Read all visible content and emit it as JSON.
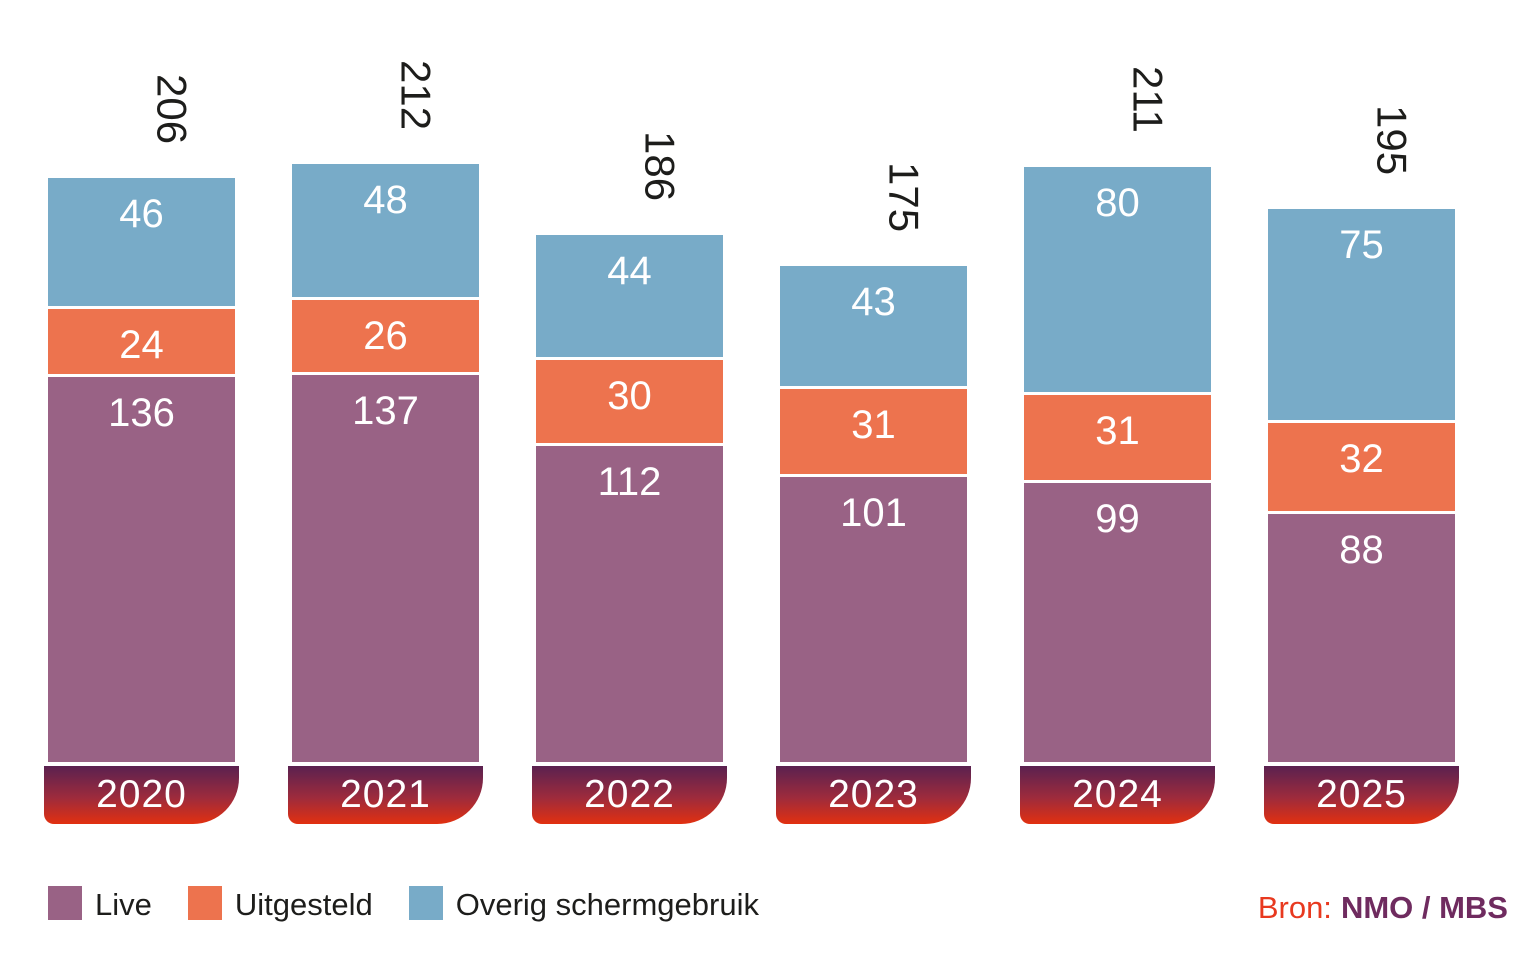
{
  "colors": {
    "live": "#996285",
    "uitgesteld": "#ed734e",
    "overig": "#78abc8",
    "band_gradient_top": "#5a2150",
    "band_gradient_mid": "#9e2b3c",
    "band_gradient_bottom": "#e23010",
    "total_text": "#1d1d1b",
    "value_text": "#ffffff",
    "source_label": "#e8391f",
    "source_value": "#6f2b5f"
  },
  "chart_data": {
    "type": "bar",
    "stacked": true,
    "title": "",
    "xlabel": "",
    "ylabel": "",
    "grid": false,
    "legend_position": "bottom",
    "categories": [
      "2020",
      "2021",
      "2022",
      "2023",
      "2024",
      "2025"
    ],
    "series": [
      {
        "name": "Live",
        "color_key": "live",
        "values": [
          136,
          137,
          112,
          101,
          99,
          88
        ]
      },
      {
        "name": "Uitgesteld",
        "color_key": "uitgesteld",
        "values": [
          24,
          26,
          30,
          31,
          31,
          32
        ]
      },
      {
        "name": "Overig schermgebruik",
        "color_key": "overig",
        "values": [
          46,
          48,
          44,
          43,
          80,
          75
        ]
      }
    ],
    "totals": [
      206,
      212,
      186,
      175,
      211,
      195
    ],
    "ylim": [
      0,
      212
    ]
  },
  "legend": {
    "items": [
      {
        "label": "Live"
      },
      {
        "label": "Uitgesteld"
      },
      {
        "label": "Overig schermgebruik"
      }
    ]
  },
  "source": {
    "label": "Bron:",
    "value": "NMO / MBS"
  }
}
